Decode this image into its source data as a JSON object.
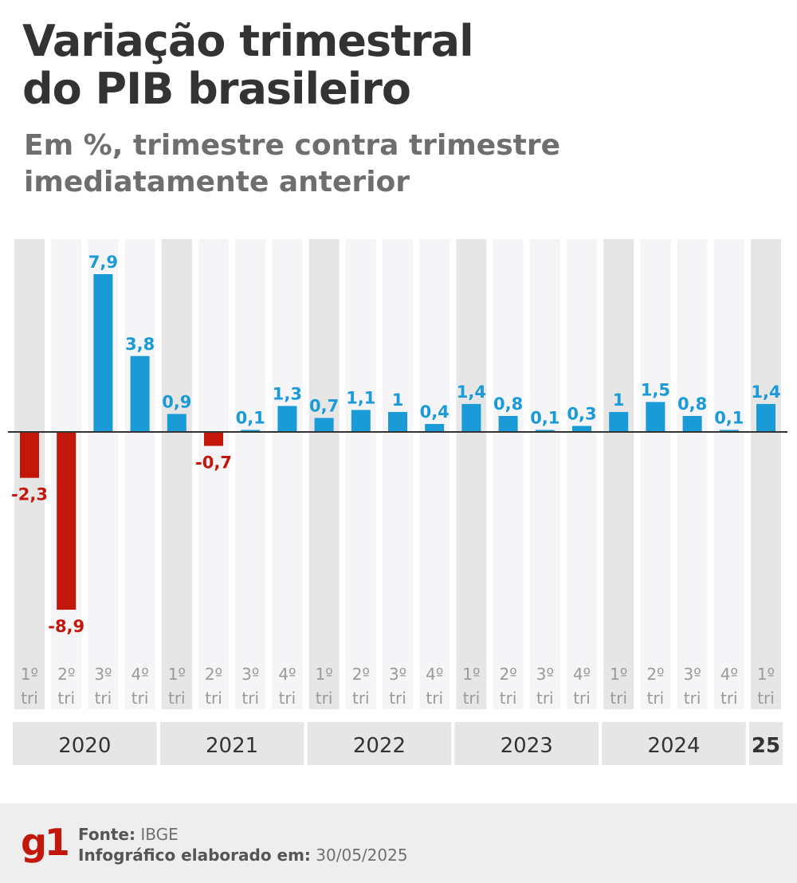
{
  "header": {
    "title_line1": "Variação trimestral",
    "title_line2": "do PIB brasileiro",
    "subtitle_line1": "Em %, trimestre contra trimestre",
    "subtitle_line2": "imediatamente anterior"
  },
  "chart_data": {
    "type": "bar",
    "title": "Variação trimestral do PIB brasileiro",
    "ylabel": "Em %, trimestre contra trimestre imediatamente anterior",
    "xlabel": "",
    "ylim": [
      -8.9,
      7.9
    ],
    "categories": [
      {
        "q": "1º",
        "t": "tri",
        "year": "2020"
      },
      {
        "q": "2º",
        "t": "tri",
        "year": "2020"
      },
      {
        "q": "3º",
        "t": "tri",
        "year": "2020"
      },
      {
        "q": "4º",
        "t": "tri",
        "year": "2020"
      },
      {
        "q": "1º",
        "t": "tri",
        "year": "2021"
      },
      {
        "q": "2º",
        "t": "tri",
        "year": "2021"
      },
      {
        "q": "3º",
        "t": "tri",
        "year": "2021"
      },
      {
        "q": "4º",
        "t": "tri",
        "year": "2021"
      },
      {
        "q": "1º",
        "t": "tri",
        "year": "2022"
      },
      {
        "q": "2º",
        "t": "tri",
        "year": "2022"
      },
      {
        "q": "3º",
        "t": "tri",
        "year": "2022"
      },
      {
        "q": "4º",
        "t": "tri",
        "year": "2022"
      },
      {
        "q": "1º",
        "t": "tri",
        "year": "2023"
      },
      {
        "q": "2º",
        "t": "tri",
        "year": "2023"
      },
      {
        "q": "3º",
        "t": "tri",
        "year": "2023"
      },
      {
        "q": "4º",
        "t": "tri",
        "year": "2023"
      },
      {
        "q": "1º",
        "t": "tri",
        "year": "2024"
      },
      {
        "q": "2º",
        "t": "tri",
        "year": "2024"
      },
      {
        "q": "3º",
        "t": "tri",
        "year": "2024"
      },
      {
        "q": "4º",
        "t": "tri",
        "year": "2024"
      },
      {
        "q": "1º",
        "t": "tri",
        "year": "2025"
      }
    ],
    "values": [
      -2.3,
      -8.9,
      7.9,
      3.8,
      0.9,
      -0.7,
      0.1,
      1.3,
      0.7,
      1.1,
      1,
      0.4,
      1.4,
      0.8,
      0.1,
      0.3,
      1,
      1.5,
      0.8,
      0.1,
      1.4
    ],
    "value_labels": [
      "-2,3",
      "-8,9",
      "7,9",
      "3,8",
      "0,9",
      "-0,7",
      "0,1",
      "1,3",
      "0,7",
      "1,1",
      "1",
      "0,4",
      "1,4",
      "0,8",
      "0,1",
      "0,3",
      "1",
      "1,5",
      "0,8",
      "0,1",
      "1,4"
    ],
    "year_groups": [
      {
        "label": "2020",
        "count": 4,
        "bold": false
      },
      {
        "label": "2021",
        "count": 4,
        "bold": false
      },
      {
        "label": "2022",
        "count": 4,
        "bold": false
      },
      {
        "label": "2023",
        "count": 4,
        "bold": false
      },
      {
        "label": "2024",
        "count": 4,
        "bold": false
      },
      {
        "label": "25",
        "count": 1,
        "bold": true
      }
    ],
    "colors": {
      "positive": "#1a9ad6",
      "negative": "#c4170c",
      "band_dark": "#e6e6e6",
      "band_light": "#f5f5f7",
      "tick_text": "#9a9a9a",
      "year_text": "#333333",
      "axis": "#333333"
    }
  },
  "footer": {
    "logo": "g1",
    "source_label": "Fonte:",
    "source_value": "IBGE",
    "made_label": "Infográfico elaborado em:",
    "made_value": "30/05/2025"
  }
}
